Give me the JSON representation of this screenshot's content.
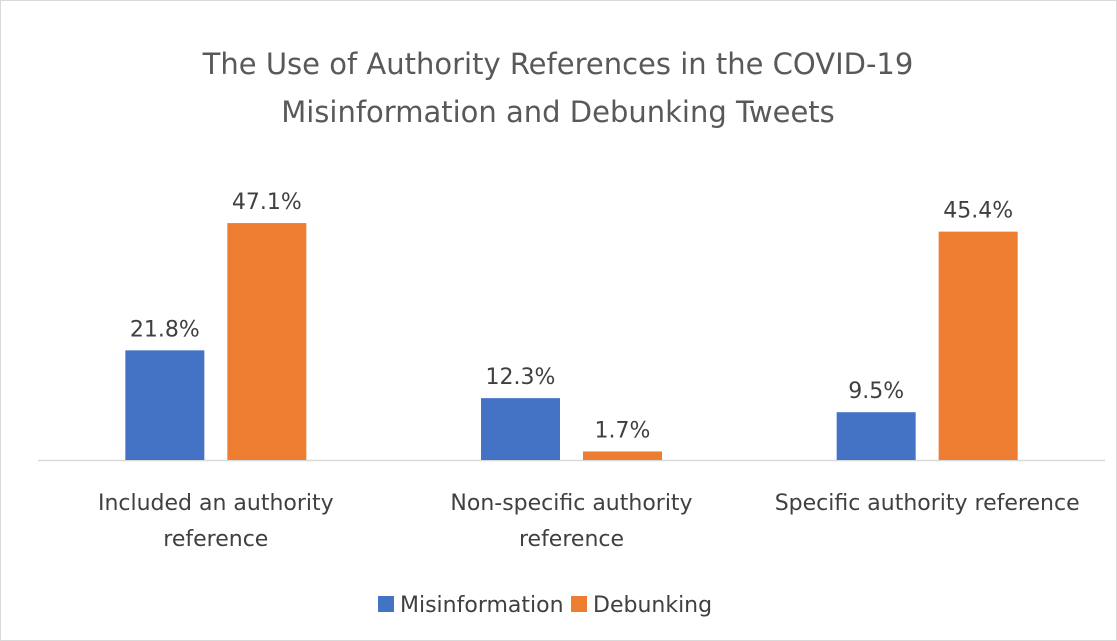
{
  "chart_data": {
    "type": "bar",
    "title": "The Use of Authority References in the COVID-19 Misinformation and Debunking Tweets",
    "categories": [
      "Included an authority reference",
      "Non-specific authority reference",
      "Specific authority reference"
    ],
    "series": [
      {
        "name": "Misinformation",
        "color": "#4472c4",
        "values": [
          21.8,
          12.3,
          9.5
        ],
        "value_labels": [
          "21.8%",
          "12.3%",
          "9.5%"
        ]
      },
      {
        "name": "Debunking",
        "color": "#ed7d31",
        "values": [
          47.1,
          1.7,
          45.4
        ],
        "value_labels": [
          "47.1%",
          "1.7%",
          "45.4%"
        ]
      }
    ],
    "legend": "bottom"
  }
}
